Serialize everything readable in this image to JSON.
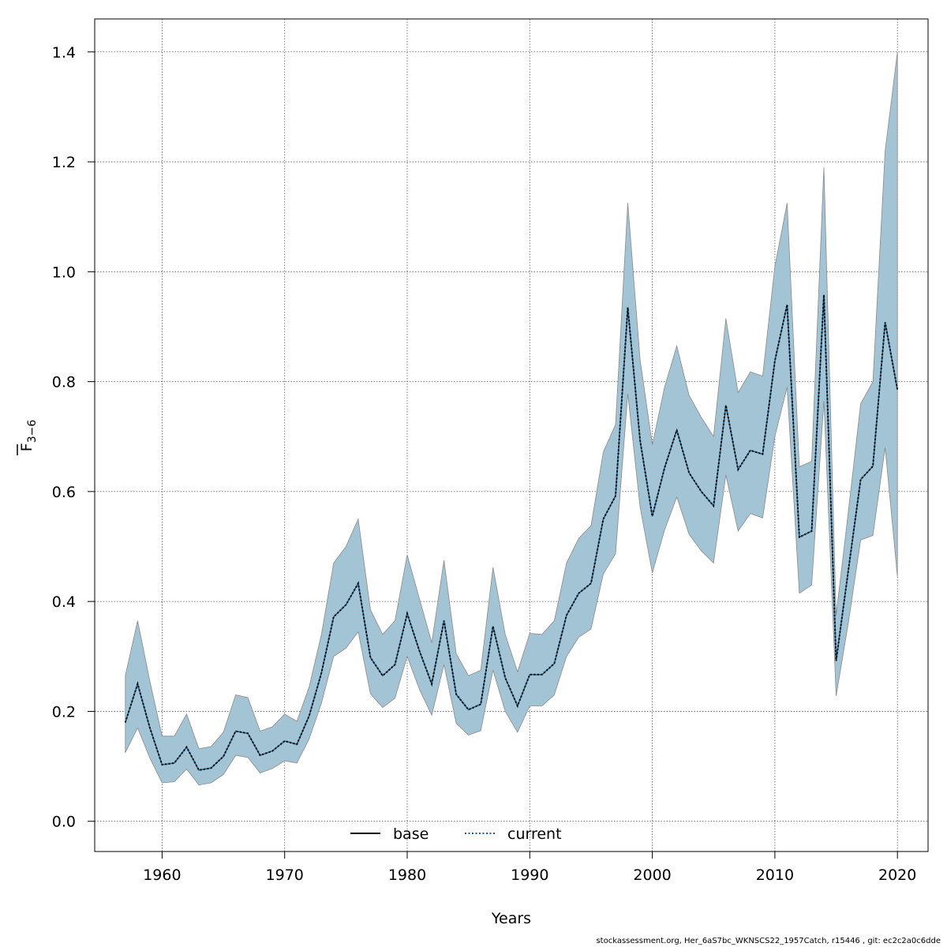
{
  "footer_text": "stockassessment.org, Her_6aS7bc_WKNSCS22_1957Catch, r15446 , git: ec2c2a0c6dde",
  "colors": {
    "band": "#a3c4d5",
    "band_edge": "#8a8a8a",
    "base_line": "#000000",
    "current_line": "#000000",
    "current_legend": "#1f5f8b"
  },
  "chart_data": {
    "type": "line",
    "title": "",
    "xlabel": "Years",
    "ylabel_main": "F",
    "ylabel_sub": "3−6",
    "xlim": [
      1954.5,
      2022.5
    ],
    "ylim": [
      -0.055,
      1.46
    ],
    "x_ticks": [
      1960,
      1970,
      1980,
      1990,
      2000,
      2010,
      2020
    ],
    "x_tick_labels": [
      "1960",
      "1970",
      "1980",
      "1990",
      "2000",
      "2010",
      "2020"
    ],
    "y_ticks": [
      0.0,
      0.2,
      0.4,
      0.6,
      0.8,
      1.0,
      1.2,
      1.4
    ],
    "y_tick_labels": [
      "0.0",
      "0.2",
      "0.4",
      "0.6",
      "0.8",
      "1.0",
      "1.2",
      "1.4"
    ],
    "grid": true,
    "legend": {
      "position": "bottom",
      "entries": [
        {
          "label": "base",
          "style": "solid"
        },
        {
          "label": "current",
          "style": "dotted"
        }
      ]
    },
    "x": [
      1957,
      1958,
      1959,
      1960,
      1961,
      1962,
      1963,
      1964,
      1965,
      1966,
      1967,
      1968,
      1969,
      1970,
      1971,
      1972,
      1973,
      1974,
      1975,
      1976,
      1977,
      1978,
      1979,
      1980,
      1981,
      1982,
      1983,
      1984,
      1985,
      1986,
      1987,
      1988,
      1989,
      1990,
      1991,
      1992,
      1993,
      1994,
      1995,
      1996,
      1997,
      1998,
      1999,
      2000,
      2001,
      2002,
      2003,
      2004,
      2005,
      2006,
      2007,
      2008,
      2009,
      2010,
      2011,
      2012,
      2013,
      2014,
      2015,
      2016,
      2017,
      2018,
      2019,
      2020
    ],
    "upper": [
      0.265,
      0.365,
      0.255,
      0.155,
      0.155,
      0.195,
      0.132,
      0.136,
      0.162,
      0.23,
      0.225,
      0.164,
      0.172,
      0.195,
      0.182,
      0.245,
      0.34,
      0.47,
      0.5,
      0.55,
      0.385,
      0.34,
      0.365,
      0.485,
      0.405,
      0.325,
      0.475,
      0.305,
      0.265,
      0.275,
      0.462,
      0.34,
      0.272,
      0.342,
      0.34,
      0.365,
      0.47,
      0.515,
      0.538,
      0.672,
      0.722,
      1.125,
      0.84,
      0.685,
      0.79,
      0.865,
      0.775,
      0.735,
      0.7,
      0.915,
      0.78,
      0.818,
      0.81,
      1.01,
      1.125,
      0.645,
      0.655,
      1.19,
      0.375,
      0.565,
      0.76,
      0.8,
      1.22,
      1.4
    ],
    "lower": [
      0.125,
      0.17,
      0.115,
      0.07,
      0.072,
      0.095,
      0.066,
      0.07,
      0.085,
      0.12,
      0.116,
      0.088,
      0.096,
      0.11,
      0.106,
      0.15,
      0.215,
      0.3,
      0.315,
      0.345,
      0.232,
      0.207,
      0.224,
      0.3,
      0.24,
      0.193,
      0.285,
      0.178,
      0.157,
      0.165,
      0.275,
      0.2,
      0.162,
      0.21,
      0.21,
      0.23,
      0.3,
      0.335,
      0.35,
      0.45,
      0.487,
      0.778,
      0.572,
      0.452,
      0.53,
      0.59,
      0.522,
      0.492,
      0.47,
      0.63,
      0.528,
      0.56,
      0.552,
      0.7,
      0.79,
      0.415,
      0.43,
      0.765,
      0.228,
      0.362,
      0.512,
      0.52,
      0.68,
      0.445
    ],
    "series": [
      {
        "name": "base",
        "style": "solid",
        "values": [
          0.18,
          0.25,
          0.17,
          0.103,
          0.106,
          0.135,
          0.093,
          0.097,
          0.118,
          0.164,
          0.16,
          0.12,
          0.128,
          0.146,
          0.14,
          0.192,
          0.27,
          0.372,
          0.394,
          0.433,
          0.298,
          0.265,
          0.285,
          0.378,
          0.31,
          0.25,
          0.365,
          0.231,
          0.203,
          0.213,
          0.355,
          0.261,
          0.21,
          0.267,
          0.267,
          0.287,
          0.375,
          0.415,
          0.433,
          0.55,
          0.592,
          0.935,
          0.693,
          0.555,
          0.643,
          0.712,
          0.634,
          0.6,
          0.574,
          0.757,
          0.64,
          0.675,
          0.668,
          0.838,
          0.94,
          0.517,
          0.528,
          0.958,
          0.292,
          0.458,
          0.622,
          0.646,
          0.908,
          0.785
        ]
      },
      {
        "name": "current",
        "style": "dotted",
        "values": [
          0.18,
          0.25,
          0.17,
          0.103,
          0.106,
          0.135,
          0.093,
          0.097,
          0.118,
          0.164,
          0.16,
          0.12,
          0.128,
          0.146,
          0.14,
          0.192,
          0.27,
          0.372,
          0.394,
          0.433,
          0.298,
          0.265,
          0.285,
          0.378,
          0.31,
          0.25,
          0.365,
          0.231,
          0.203,
          0.213,
          0.355,
          0.261,
          0.21,
          0.267,
          0.267,
          0.287,
          0.375,
          0.415,
          0.433,
          0.55,
          0.592,
          0.935,
          0.693,
          0.555,
          0.643,
          0.712,
          0.634,
          0.6,
          0.574,
          0.757,
          0.64,
          0.675,
          0.668,
          0.838,
          0.94,
          0.517,
          0.528,
          0.958,
          0.292,
          0.458,
          0.622,
          0.646,
          0.908,
          0.785
        ]
      }
    ]
  }
}
